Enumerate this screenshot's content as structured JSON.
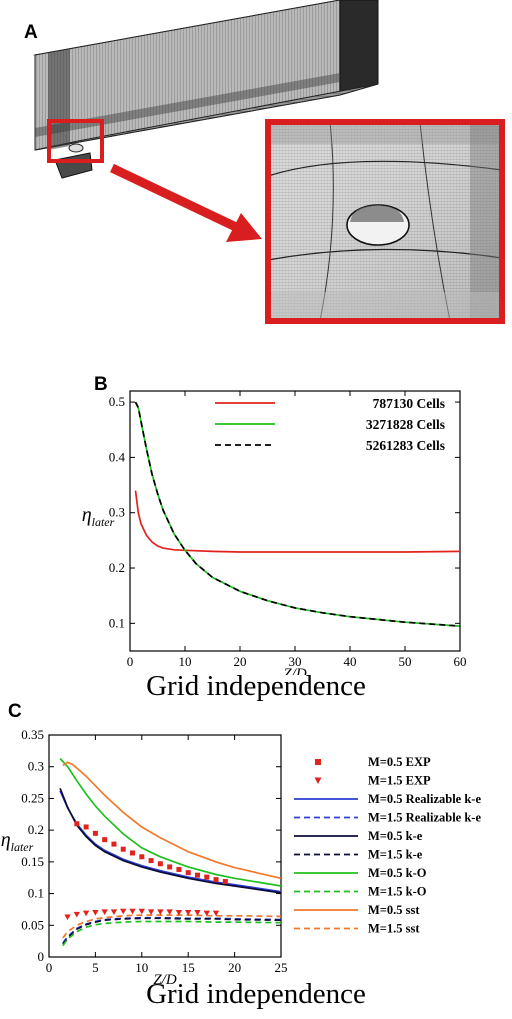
{
  "figure": {
    "panel_a": {
      "letter": "A"
    },
    "panel_b": {
      "letter": "B",
      "caption": "Grid independence"
    },
    "panel_c": {
      "letter": "C",
      "caption": "Grid independence"
    }
  },
  "chart_data": [
    {
      "panel": "B",
      "type": "line",
      "xlabel": "Z/D",
      "ylabel": "η_later",
      "xlim": [
        0,
        60
      ],
      "ylim": [
        0.05,
        0.52
      ],
      "xticks": [
        "0",
        "10",
        "20",
        "30",
        "40",
        "50",
        "60"
      ],
      "yticks": [
        "0.1",
        "0.2",
        "0.3",
        "0.4",
        "0.5"
      ],
      "legend_position": "top-right",
      "series": [
        {
          "name": "787130 Cells",
          "color": "#e0231c",
          "dash": "solid",
          "x": [
            1,
            1.5,
            2,
            3,
            4,
            5,
            6,
            8,
            10,
            15,
            20,
            30,
            40,
            50,
            60
          ],
          "y": [
            0.34,
            0.3,
            0.28,
            0.259,
            0.247,
            0.24,
            0.236,
            0.233,
            0.232,
            0.23,
            0.229,
            0.229,
            0.229,
            0.229,
            0.23
          ]
        },
        {
          "name": "3271828 Cells",
          "color": "#1fc01f",
          "dash": "solid",
          "x": [
            1,
            1.5,
            2,
            3,
            4,
            5,
            6,
            8,
            10,
            12,
            15,
            20,
            25,
            30,
            35,
            40,
            50,
            60
          ],
          "y": [
            0.5,
            0.49,
            0.465,
            0.415,
            0.37,
            0.335,
            0.305,
            0.262,
            0.232,
            0.208,
            0.183,
            0.158,
            0.141,
            0.128,
            0.119,
            0.112,
            0.102,
            0.095
          ]
        },
        {
          "name": "5261283 Cells",
          "color": "#000000",
          "dash": "dashed",
          "x": [
            1,
            1.5,
            2,
            3,
            4,
            5,
            6,
            8,
            10,
            12,
            15,
            20,
            25,
            30,
            35,
            40,
            50,
            60
          ],
          "y": [
            0.5,
            0.49,
            0.465,
            0.415,
            0.37,
            0.335,
            0.305,
            0.262,
            0.232,
            0.208,
            0.183,
            0.158,
            0.141,
            0.128,
            0.119,
            0.112,
            0.102,
            0.095
          ]
        }
      ]
    },
    {
      "panel": "C",
      "type": "line",
      "xlabel": "Z/D",
      "ylabel": "η_later",
      "xlim": [
        0,
        25
      ],
      "ylim": [
        0,
        0.35
      ],
      "xticks": [
        "0",
        "5",
        "10",
        "15",
        "20",
        "25"
      ],
      "yticks": [
        "0",
        "0.05",
        "0.1",
        "0.15",
        "0.2",
        "0.25",
        "0.3",
        "0.35"
      ],
      "legend_position": "right",
      "markers": [
        {
          "name": "M=0.5 EXP",
          "color": "#e0231c",
          "shape": "square",
          "x": [
            3,
            4,
            5,
            6,
            7,
            8,
            9,
            10,
            11,
            12,
            13,
            14,
            15,
            16,
            17,
            18,
            19
          ],
          "y": [
            0.21,
            0.205,
            0.195,
            0.185,
            0.178,
            0.17,
            0.164,
            0.158,
            0.152,
            0.147,
            0.142,
            0.138,
            0.133,
            0.129,
            0.126,
            0.122,
            0.119
          ]
        },
        {
          "name": "M=1.5 EXP",
          "color": "#e0231c",
          "shape": "triangle-down",
          "x": [
            2,
            3,
            4,
            5,
            6,
            7,
            8,
            9,
            10,
            11,
            12,
            13,
            14,
            15,
            16,
            17,
            18
          ],
          "y": [
            0.063,
            0.067,
            0.069,
            0.07,
            0.071,
            0.071,
            0.072,
            0.072,
            0.072,
            0.071,
            0.071,
            0.071,
            0.07,
            0.07,
            0.07,
            0.069,
            0.069
          ]
        }
      ],
      "series": [
        {
          "name": "M=0.5 Realizable k-e",
          "color": "#2c3fd6",
          "dash": "solid",
          "x": [
            1.2,
            2,
            3,
            4,
            5,
            6,
            8,
            10,
            12,
            15,
            18,
            20,
            25
          ],
          "y": [
            0.262,
            0.235,
            0.21,
            0.192,
            0.178,
            0.168,
            0.154,
            0.144,
            0.136,
            0.126,
            0.118,
            0.114,
            0.103
          ]
        },
        {
          "name": "M=1.5 Realizable k-e",
          "color": "#2c3fd6",
          "dash": "dashed",
          "x": [
            1.5,
            2,
            3,
            4,
            5,
            6,
            8,
            10,
            12,
            15,
            18,
            20,
            25
          ],
          "y": [
            0.022,
            0.032,
            0.045,
            0.052,
            0.056,
            0.059,
            0.061,
            0.062,
            0.062,
            0.061,
            0.061,
            0.06,
            0.059
          ]
        },
        {
          "name": "M=0.5 k-e",
          "color": "#0b0b3a",
          "dash": "solid",
          "x": [
            1.2,
            2,
            3,
            4,
            5,
            6,
            8,
            10,
            12,
            15,
            18,
            20,
            25
          ],
          "y": [
            0.266,
            0.236,
            0.208,
            0.19,
            0.176,
            0.166,
            0.152,
            0.142,
            0.134,
            0.124,
            0.116,
            0.112,
            0.101
          ]
        },
        {
          "name": "M=1.5 k-e",
          "color": "#0b0b3a",
          "dash": "dashed",
          "x": [
            1.5,
            2,
            3,
            4,
            5,
            6,
            8,
            10,
            12,
            15,
            18,
            20,
            25
          ],
          "y": [
            0.02,
            0.03,
            0.044,
            0.051,
            0.055,
            0.058,
            0.06,
            0.061,
            0.061,
            0.06,
            0.06,
            0.059,
            0.058
          ]
        },
        {
          "name": "M=0.5 k-O",
          "color": "#1fc01f",
          "dash": "solid",
          "x": [
            1.2,
            2,
            3,
            4,
            5,
            6,
            8,
            10,
            12,
            15,
            18,
            20,
            25
          ],
          "y": [
            0.313,
            0.3,
            0.278,
            0.257,
            0.238,
            0.222,
            0.194,
            0.172,
            0.158,
            0.142,
            0.13,
            0.124,
            0.112
          ]
        },
        {
          "name": "M=1.5 k-O",
          "color": "#1fc01f",
          "dash": "dashed",
          "x": [
            1.5,
            2,
            3,
            4,
            5,
            6,
            8,
            10,
            12,
            15,
            18,
            20,
            25
          ],
          "y": [
            0.018,
            0.028,
            0.04,
            0.047,
            0.051,
            0.053,
            0.055,
            0.056,
            0.056,
            0.056,
            0.055,
            0.055,
            0.054
          ]
        },
        {
          "name": "M=0.5 sst",
          "color": "#f07a2a",
          "dash": "solid",
          "x": [
            1.5,
            2,
            2.5,
            3,
            4,
            5,
            6,
            8,
            10,
            12,
            15,
            18,
            20,
            25
          ],
          "y": [
            0.302,
            0.307,
            0.304,
            0.298,
            0.285,
            0.27,
            0.255,
            0.228,
            0.205,
            0.188,
            0.166,
            0.15,
            0.141,
            0.124
          ]
        },
        {
          "name": "M=1.5 sst",
          "color": "#f07a2a",
          "dash": "dashed",
          "x": [
            1.5,
            2,
            3,
            4,
            5,
            6,
            8,
            10,
            12,
            15,
            18,
            20,
            25
          ],
          "y": [
            0.03,
            0.04,
            0.05,
            0.056,
            0.06,
            0.062,
            0.065,
            0.066,
            0.066,
            0.066,
            0.065,
            0.065,
            0.064
          ]
        }
      ]
    }
  ]
}
